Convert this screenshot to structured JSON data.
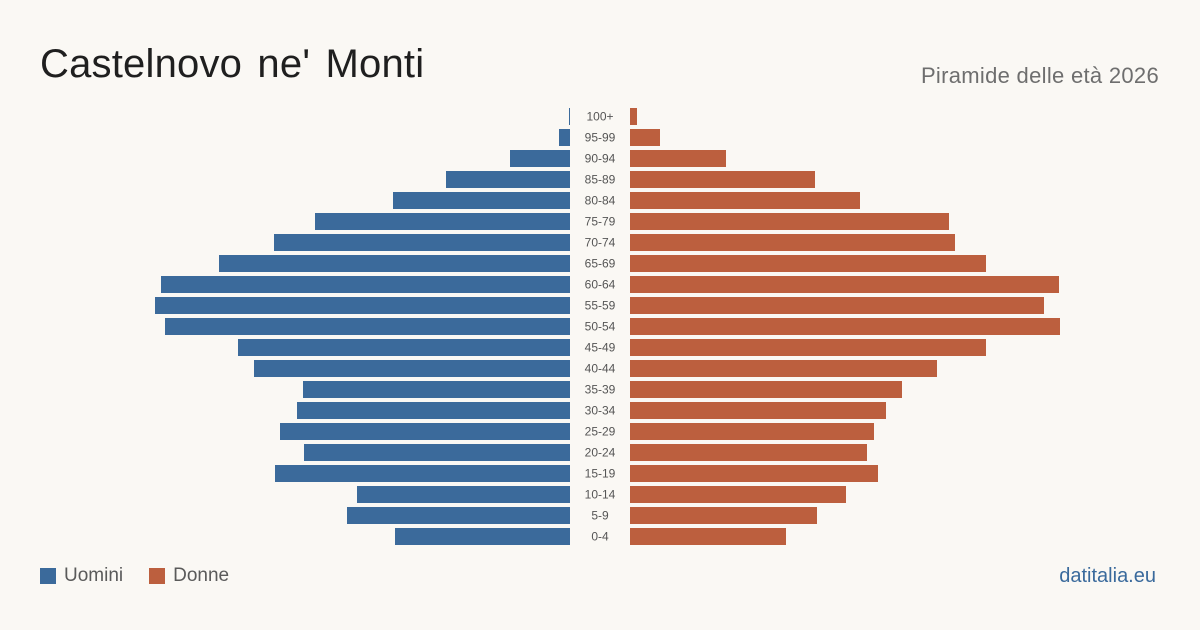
{
  "header": {
    "title": "Castelnovo ne' Monti",
    "subtitle": "Piramide delle età 2026"
  },
  "legend": {
    "men_label": "Uomini",
    "women_label": "Donne"
  },
  "brand": "datitalia.eu",
  "colors": {
    "men": "#3b6a9b",
    "women": "#bc5f3e",
    "background": "#faf8f4",
    "age_label": "#555555"
  },
  "chart_data": {
    "type": "bar",
    "orientation": "horizontal-pyramid",
    "categories": [
      "100+",
      "95-99",
      "90-94",
      "85-89",
      "80-84",
      "75-79",
      "70-74",
      "65-69",
      "60-64",
      "55-59",
      "50-54",
      "45-49",
      "40-44",
      "35-39",
      "30-34",
      "25-29",
      "20-24",
      "15-19",
      "10-14",
      "5-9",
      "0-4"
    ],
    "series": [
      {
        "name": "Uomini",
        "side": "left",
        "values": [
          1,
          11,
          60,
          124,
          177,
          255,
          296,
          351,
          409,
          415,
          405,
          332,
          316,
          267,
          273,
          290,
          266,
          295,
          213,
          223,
          175
        ]
      },
      {
        "name": "Donne",
        "side": "right",
        "values": [
          7,
          30,
          96,
          185,
          230,
          319,
          325,
          356,
          429,
          414,
          430,
          356,
          307,
          272,
          256,
          244,
          237,
          248,
          216,
          187,
          156
        ]
      }
    ],
    "grid": false,
    "legend_position": "bottom-left"
  }
}
